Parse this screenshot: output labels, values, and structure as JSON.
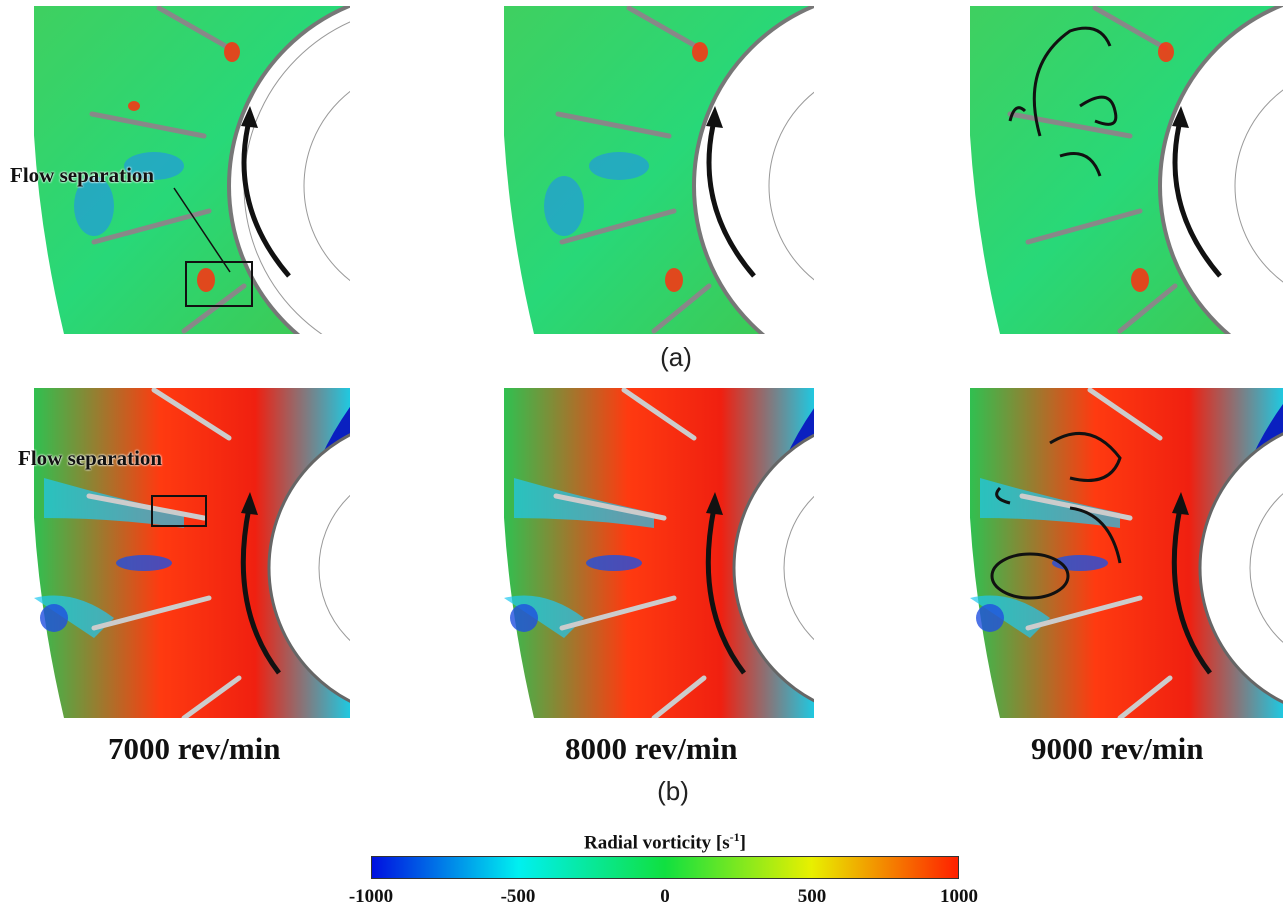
{
  "figure": {
    "row_a": {
      "label": "(a)",
      "panels": [
        {
          "id": "a-7000",
          "callout": "Flow separation"
        },
        {
          "id": "a-8000",
          "callout": ""
        },
        {
          "id": "a-9000",
          "callout": ""
        }
      ]
    },
    "row_b": {
      "label": "(b)",
      "panels": [
        {
          "id": "b-7000",
          "callout": "Flow separation",
          "speed": "7000 rev/min"
        },
        {
          "id": "b-8000",
          "callout": "",
          "speed": "8000 rev/min"
        },
        {
          "id": "b-9000",
          "callout": "",
          "speed": "9000 rev/min"
        }
      ]
    },
    "colorbar": {
      "title": "Radial vorticity [s",
      "title_sup": "-1",
      "title_end": "]",
      "ticks": [
        "-1000",
        "-500",
        "0",
        "500",
        "1000"
      ],
      "tick_values": [
        -1000,
        -500,
        0,
        500,
        1000
      ],
      "min": -1000,
      "max": 1000,
      "colors": [
        "#0010e0",
        "#00f0f0",
        "#10e040",
        "#e8f000",
        "#ff2000"
      ]
    }
  }
}
